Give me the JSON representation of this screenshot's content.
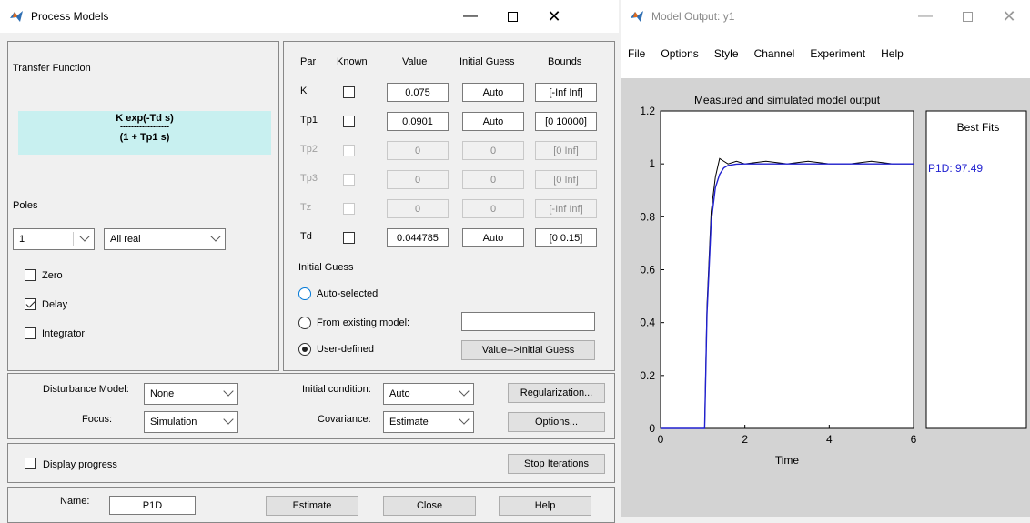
{
  "pm": {
    "title": "Process Models",
    "tf": {
      "label": "Transfer Function",
      "numerator": "K exp(-Td s)",
      "divider": "------------------",
      "denominator": "(1 + Tp1 s)"
    },
    "poles_label": "Poles",
    "poles_value": "1",
    "poles_type": "All real",
    "zero_label": "Zero",
    "delay_label": "Delay",
    "integrator_label": "Integrator",
    "headers": {
      "par": "Par",
      "known": "Known",
      "value": "Value",
      "guess": "Initial Guess",
      "bounds": "Bounds"
    },
    "rows": [
      {
        "par": "K",
        "value": "0.075",
        "guess": "Auto",
        "bounds": "[-Inf Inf]",
        "enabled": true
      },
      {
        "par": "Tp1",
        "value": "0.0901",
        "guess": "Auto",
        "bounds": "[0 10000]",
        "enabled": true
      },
      {
        "par": "Tp2",
        "value": "0",
        "guess": "0",
        "bounds": "[0 Inf]",
        "enabled": false
      },
      {
        "par": "Tp3",
        "value": "0",
        "guess": "0",
        "bounds": "[0 Inf]",
        "enabled": false
      },
      {
        "par": "Tz",
        "value": "0",
        "guess": "0",
        "bounds": "[-Inf Inf]",
        "enabled": false
      },
      {
        "par": "Td",
        "value": "0.044785",
        "guess": "Auto",
        "bounds": "[0 0.15]",
        "enabled": true
      }
    ],
    "ig_title": "Initial Guess",
    "ig_auto": "Auto-selected",
    "ig_existing": "From existing model:",
    "ig_user": "User-defined",
    "ig_button": "Value-->Initial Guess",
    "dist_label": "Disturbance Model:",
    "dist_value": "None",
    "focus_label": "Focus:",
    "focus_value": "Simulation",
    "ic_label": "Initial condition:",
    "ic_value": "Auto",
    "cov_label": "Covariance:",
    "cov_value": "Estimate",
    "reg_button": "Regularization...",
    "opt_button": "Options...",
    "progress_label": "Display progress",
    "stop_button": "Stop Iterations",
    "name_label": "Name:",
    "name_value": "P1D",
    "estimate_button": "Estimate",
    "close_button": "Close",
    "help_button": "Help"
  },
  "mo": {
    "title": "Model Output: y1",
    "menu": [
      "File",
      "Options",
      "Style",
      "Channel",
      "Experiment",
      "Help"
    ],
    "best_fits_title": "Best Fits",
    "fit_entry": "P1D: 97.49"
  },
  "colors": {
    "measured": "#000000",
    "model": "#2020d0",
    "tf_bg": "#c8f0f0"
  },
  "chart_data": {
    "type": "line",
    "title": "Measured and simulated model output",
    "xlabel": "Time",
    "ylabel": "",
    "xlim": [
      0,
      6
    ],
    "ylim": [
      0,
      1.2
    ],
    "xticks": [
      0,
      2,
      4,
      6
    ],
    "yticks": [
      0,
      0.2,
      0.4,
      0.6,
      0.8,
      1,
      1.2
    ],
    "series": [
      {
        "values_desc": "measured",
        "x": [
          0,
          1.0,
          1.045,
          1.1,
          1.2,
          1.3,
          1.4,
          1.5,
          1.6,
          1.8,
          2.0,
          2.5,
          3.0,
          3.5,
          4.0,
          4.5,
          5.0,
          5.5,
          6.0
        ],
        "y": [
          0,
          0,
          0,
          0.46,
          0.82,
          0.95,
          1.02,
          1.01,
          1.0,
          1.01,
          1.0,
          1.01,
          1.0,
          1.01,
          1.0,
          1.0,
          1.01,
          1.0,
          1.0
        ]
      },
      {
        "values_desc": "model",
        "x": [
          0,
          1.0,
          1.045,
          1.1,
          1.2,
          1.3,
          1.4,
          1.5,
          1.6,
          1.8,
          2.0,
          2.5,
          3.0,
          4.0,
          5.0,
          6.0
        ],
        "y": [
          0,
          0,
          0,
          0.43,
          0.78,
          0.91,
          0.96,
          0.985,
          0.994,
          0.999,
          1.0,
          1.0,
          1.0,
          1.0,
          1.0,
          1.0
        ]
      }
    ]
  }
}
